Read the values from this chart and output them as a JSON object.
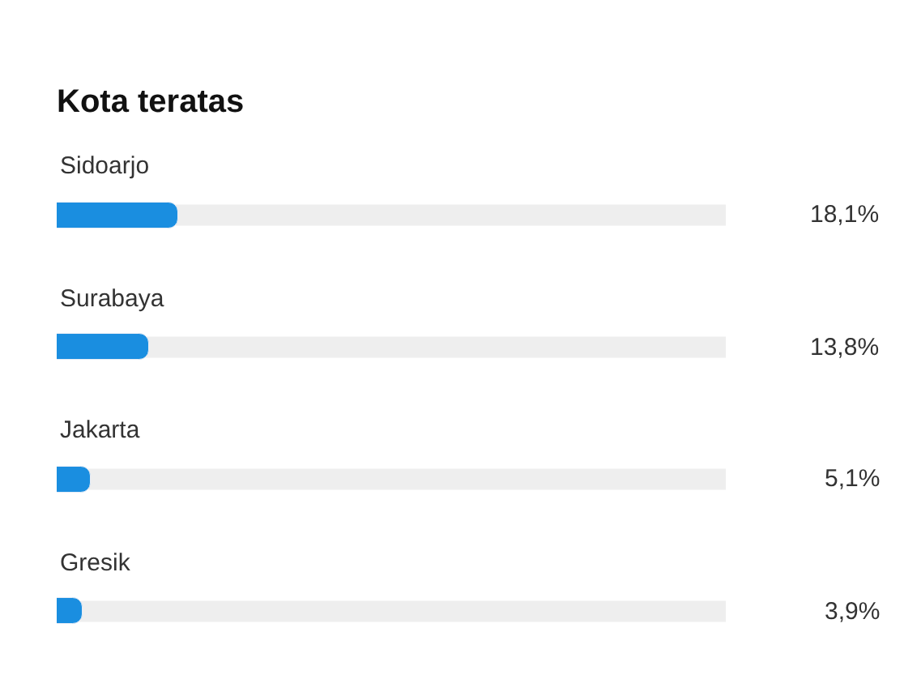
{
  "chart_data": {
    "type": "bar",
    "orientation": "horizontal",
    "title": "Kota teratas",
    "categories": [
      "Sidoarjo",
      "Surabaya",
      "Jakarta",
      "Gresik"
    ],
    "values": [
      18.1,
      13.8,
      5.1,
      3.9
    ],
    "value_labels": [
      "18,1%",
      "13,8%",
      "5,1%",
      "3,9%"
    ],
    "color": "#1a8ee0",
    "xlim": [
      0,
      100
    ],
    "tick_labels": false,
    "grid": false,
    "legend": false
  }
}
